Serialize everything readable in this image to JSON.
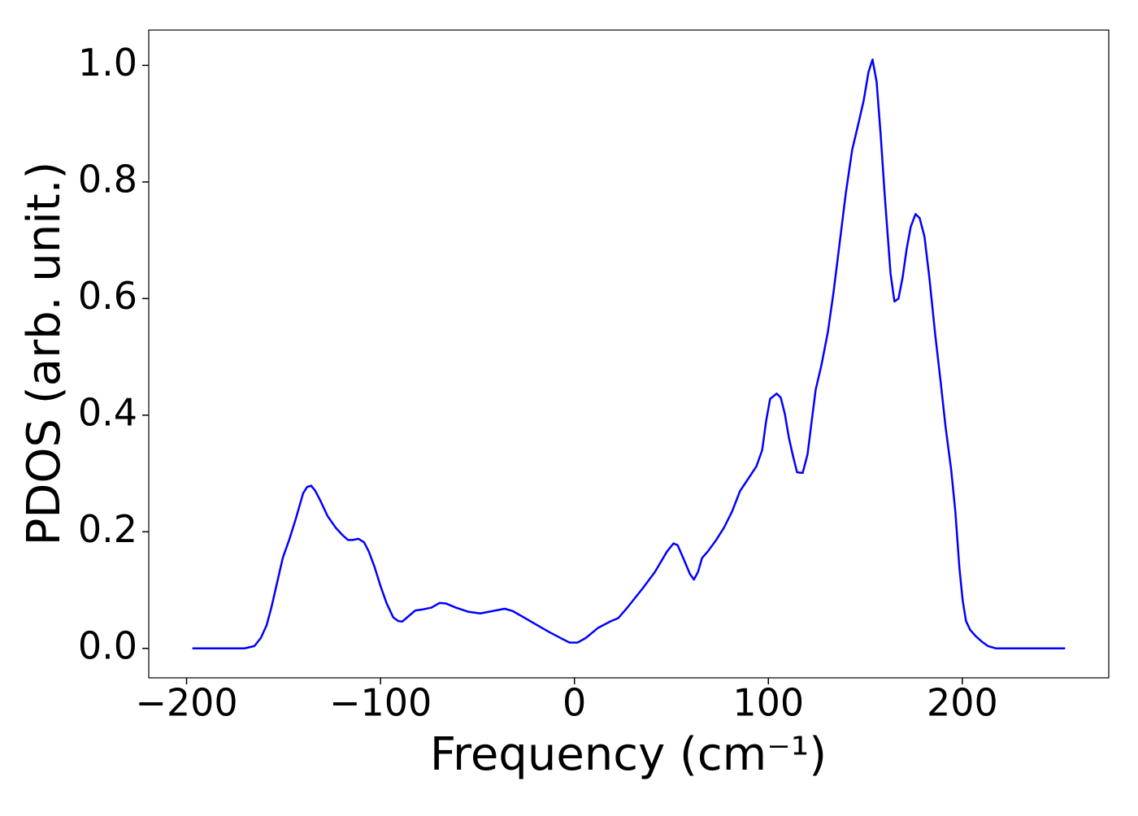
{
  "chart_data": {
    "type": "line",
    "xlabel": "Frequency (cm⁻¹)",
    "ylabel": "PDOS (arb. unit.)",
    "color": "#0000ff",
    "x": [
      -197,
      -170.1,
      -165.0,
      -161.7,
      -158.7,
      -156.2,
      -153.3,
      -150.4,
      -147.0,
      -143.7,
      -139.9,
      -137.8,
      -135.7,
      -133.6,
      -131.1,
      -127.3,
      -123.1,
      -119.8,
      -116.8,
      -114.3,
      -111.4,
      -108.5,
      -106.0,
      -103.0,
      -100.1,
      -96.8,
      -93.4,
      -90.9,
      -88.8,
      -86.3,
      -82.1,
      -77.9,
      -73.7,
      -69.5,
      -66.2,
      -61.2,
      -54.9,
      -48.6,
      -42.3,
      -36.0,
      -31.8,
      -25.5,
      -19.3,
      -13.0,
      -6.7,
      -2.5,
      1.7,
      5.9,
      12.1,
      18.4,
      22.6,
      26.8,
      35.2,
      41.5,
      47.7,
      51.1,
      53.2,
      56.1,
      59.5,
      61.6,
      63.7,
      65.8,
      68.7,
      72.9,
      77.1,
      81.3,
      85.4,
      89.6,
      93.8,
      96.8,
      98.8,
      100.9,
      104.3,
      106.4,
      108.5,
      110.6,
      112.7,
      114.8,
      117.7,
      120.2,
      122.3,
      124.4,
      127.3,
      130.7,
      133.6,
      137.0,
      139.9,
      143.2,
      146.2,
      149.1,
      151.6,
      153.7,
      155.8,
      157.9,
      160.0,
      163.0,
      165.0,
      167.1,
      169.2,
      171.3,
      173.4,
      175.9,
      178.0,
      180.5,
      183.0,
      186.0,
      188.9,
      191.4,
      194.3,
      196.4,
      198.5,
      200.2,
      201.9,
      204.0,
      206.9,
      210.3,
      213.2,
      217.4,
      253.0
    ],
    "values": [
      0,
      0,
      0.004,
      0.018,
      0.04,
      0.071,
      0.113,
      0.155,
      0.187,
      0.222,
      0.266,
      0.277,
      0.279,
      0.27,
      0.254,
      0.227,
      0.207,
      0.195,
      0.186,
      0.186,
      0.188,
      0.182,
      0.166,
      0.139,
      0.108,
      0.077,
      0.053,
      0.047,
      0.046,
      0.053,
      0.065,
      0.067,
      0.07,
      0.078,
      0.077,
      0.07,
      0.063,
      0.06,
      0.064,
      0.068,
      0.064,
      0.052,
      0.04,
      0.028,
      0.017,
      0.01,
      0.01,
      0.018,
      0.035,
      0.046,
      0.052,
      0.068,
      0.103,
      0.131,
      0.166,
      0.18,
      0.177,
      0.155,
      0.128,
      0.118,
      0.131,
      0.155,
      0.166,
      0.185,
      0.207,
      0.235,
      0.27,
      0.291,
      0.312,
      0.34,
      0.389,
      0.428,
      0.437,
      0.43,
      0.402,
      0.361,
      0.33,
      0.302,
      0.301,
      0.333,
      0.389,
      0.444,
      0.485,
      0.543,
      0.611,
      0.702,
      0.78,
      0.855,
      0.897,
      0.939,
      0.988,
      1.01,
      0.972,
      0.881,
      0.777,
      0.643,
      0.595,
      0.6,
      0.636,
      0.685,
      0.723,
      0.745,
      0.738,
      0.706,
      0.636,
      0.539,
      0.455,
      0.379,
      0.305,
      0.235,
      0.138,
      0.082,
      0.047,
      0.032,
      0.021,
      0.011,
      0.004,
      0,
      0
    ],
    "xlim": [
      -219.5,
      275.5
    ],
    "ylim": [
      -0.0505,
      1.0605
    ],
    "xticks": [
      {
        "value": -200,
        "label": "−200"
      },
      {
        "value": -100,
        "label": "−100"
      },
      0,
      100,
      200
    ],
    "yticks": [
      {
        "value": 0,
        "label": "0.0"
      },
      0.2,
      0.4,
      0.6,
      0.8,
      {
        "value": 1,
        "label": "1.0"
      }
    ],
    "grid": false
  }
}
